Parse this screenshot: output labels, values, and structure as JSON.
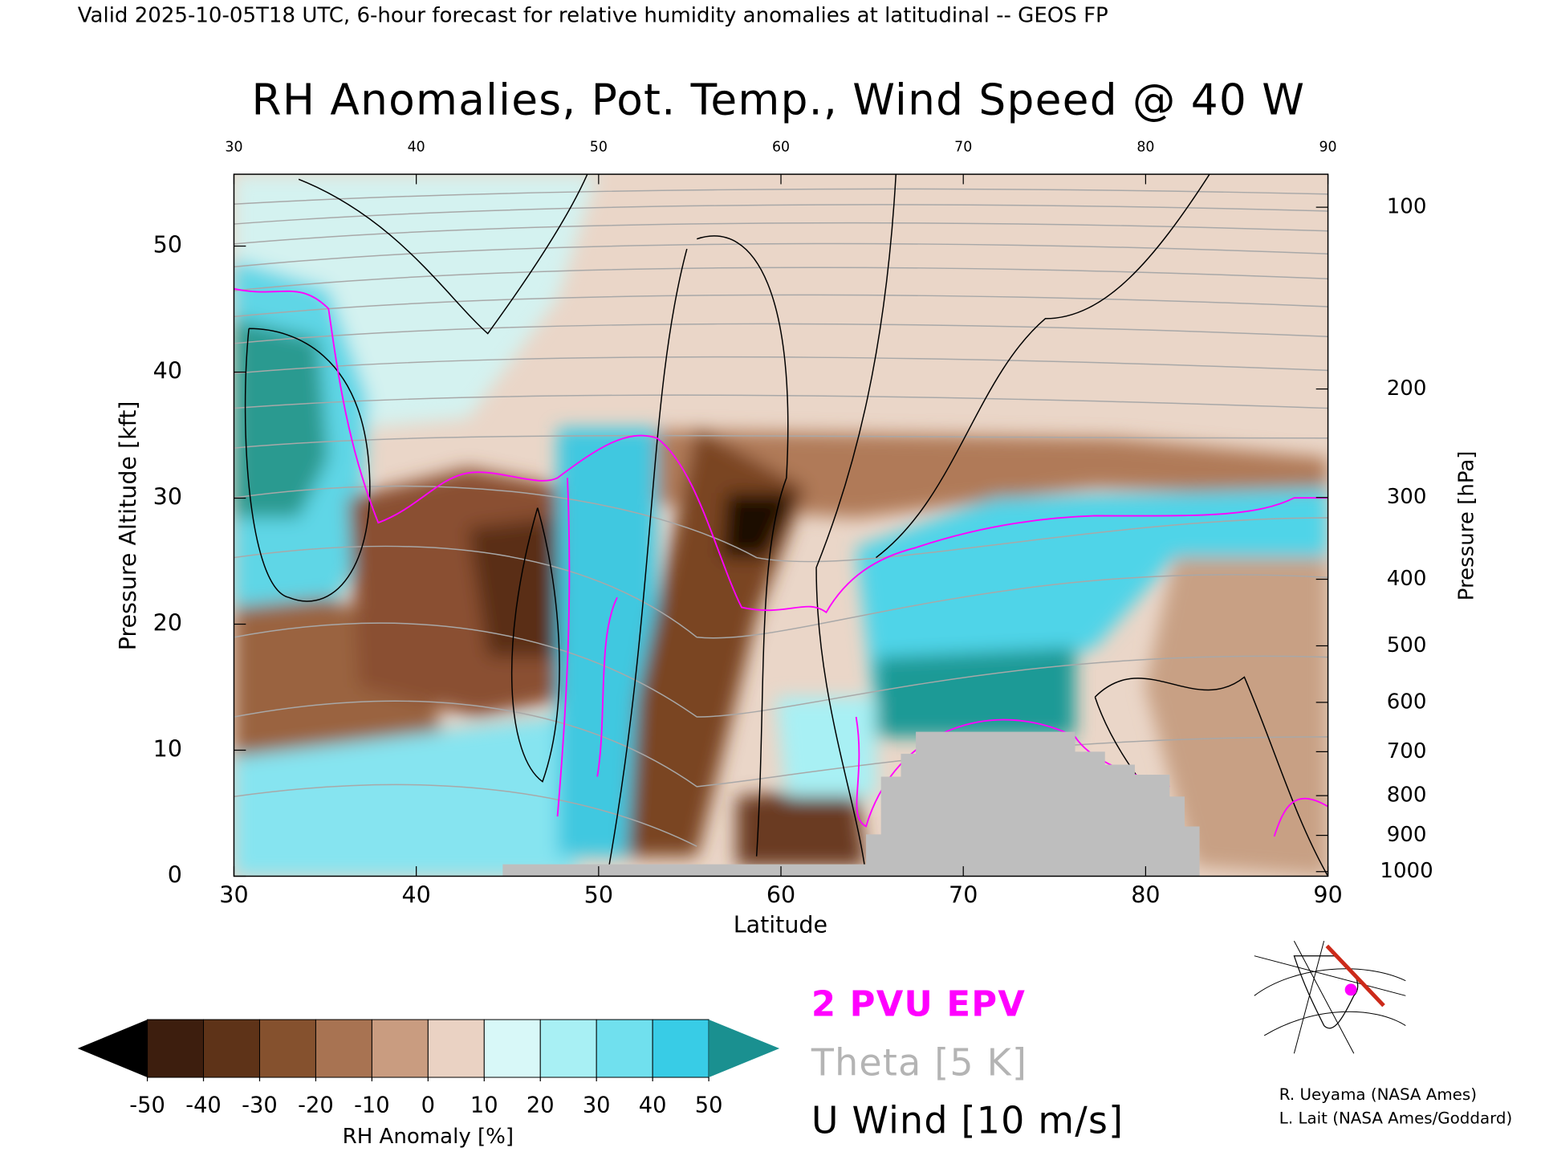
{
  "header": "Valid 2025-10-05T18 UTC, 6-hour forecast for relative humidity anomalies at latitudinal -- GEOS FP",
  "chart_data": {
    "type": "contour",
    "title": "RH Anomalies, Pot. Temp., Wind Speed @ 40 W",
    "x_label": "Latitude",
    "y_label": "Pressure Altitude [kft]",
    "y2_label": "Pressure [hPa]",
    "xlim": [
      30,
      90
    ],
    "xticks": [
      30,
      40,
      50,
      60,
      70,
      80,
      90
    ],
    "ylim": [
      0,
      55.7
    ],
    "yticks": [
      0,
      10,
      20,
      30,
      40,
      50
    ],
    "y2ticks": [
      100,
      200,
      300,
      400,
      500,
      600,
      700,
      800,
      900,
      1000
    ],
    "colorbar": {
      "label": "RH Anomaly [%]",
      "ticks": [
        -50,
        -40,
        -30,
        -20,
        -10,
        0,
        10,
        20,
        30,
        40,
        50
      ],
      "colors": [
        "#3d1e0e",
        "#5e3318",
        "#85512e",
        "#a87352",
        "#c99c80",
        "#ead2c3",
        "#d8f8f8",
        "#a8f0f4",
        "#70e0ee",
        "#38cce6",
        "#10a8c8"
      ],
      "under_color": "#000000",
      "over_color": "#1a9090"
    },
    "legend": [
      {
        "name": "2 PVU EPV",
        "color": "#ff00ff"
      },
      {
        "name": "Theta [5 K]",
        "color": "#b4b4b4"
      },
      {
        "name": "U Wind [10 m/s]",
        "color": "#000000"
      }
    ]
  },
  "credits": [
    "R. Ueyama (NASA Ames)",
    "L. Lait (NASA Ames/Goddard)"
  ]
}
